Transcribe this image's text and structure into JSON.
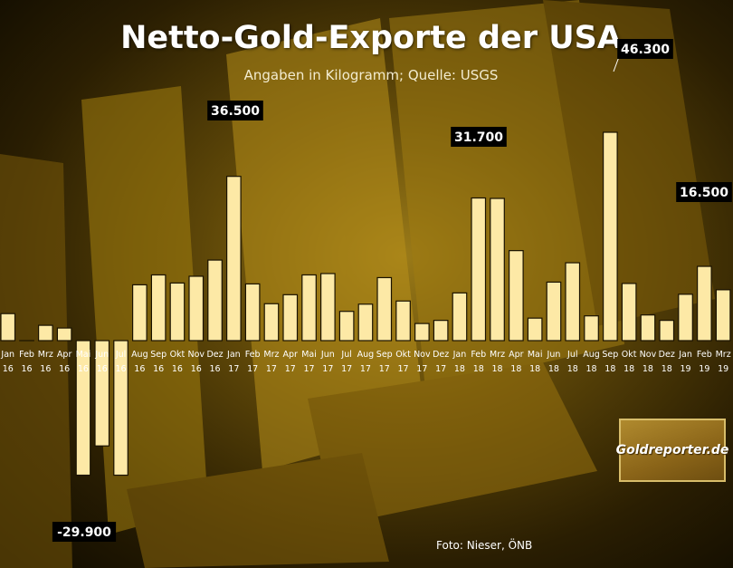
{
  "chart_data": {
    "type": "bar",
    "title": "Netto-Gold-Exporte der USA",
    "subtitle": "Angaben in Kilogramm; Quelle: USGS",
    "categories": [
      "Jan 16",
      "Feb 16",
      "Mrz 16",
      "Apr 16",
      "Mai 16",
      "Jun 16",
      "Jul 16",
      "Aug 16",
      "Sep 16",
      "Okt 16",
      "Nov 16",
      "Dez 16",
      "Jan 17",
      "Feb 17",
      "Mrz 17",
      "Apr 17",
      "Mai 17",
      "Jun 17",
      "Jul 17",
      "Aug 17",
      "Sep 17",
      "Okt 17",
      "Nov 17",
      "Dez 17",
      "Jan 18",
      "Feb 18",
      "Mrz 18",
      "Apr 18",
      "Mai 18",
      "Jun 18",
      "Jul 18",
      "Aug 18",
      "Sep 18",
      "Okt 18",
      "Nov 18",
      "Dez 18",
      "Jan 19",
      "Feb 19",
      "Mrz 19"
    ],
    "tick_months": [
      "Jan",
      "Feb",
      "Mrz",
      "Apr",
      "Mai",
      "Jun",
      "Jul",
      "Aug",
      "Sep",
      "Okt",
      "Nov",
      "Dez",
      "Jan",
      "Feb",
      "Mrz",
      "Apr",
      "Mai",
      "Jun",
      "Jul",
      "Aug",
      "Sep",
      "Okt",
      "Nov",
      "Dez",
      "Jan",
      "Feb",
      "Mrz",
      "Apr",
      "Mai",
      "Jun",
      "Jul",
      "Aug",
      "Sep",
      "Okt",
      "Nov",
      "Dez",
      "Jan",
      "Feb",
      "Mrz"
    ],
    "tick_years": [
      "16",
      "16",
      "16",
      "16",
      "16",
      "16",
      "16",
      "16",
      "16",
      "16",
      "16",
      "16",
      "17",
      "17",
      "17",
      "17",
      "17",
      "17",
      "17",
      "17",
      "17",
      "17",
      "17",
      "17",
      "18",
      "18",
      "18",
      "18",
      "18",
      "18",
      "18",
      "18",
      "18",
      "18",
      "18",
      "18",
      "19",
      "19",
      "19"
    ],
    "values": [
      6000,
      0,
      3400,
      2800,
      -29900,
      -23400,
      -29900,
      12400,
      14600,
      12800,
      14300,
      17900,
      36500,
      12600,
      8200,
      10200,
      14600,
      14900,
      6500,
      8100,
      14000,
      8800,
      3800,
      4500,
      10600,
      31700,
      31600,
      20000,
      5000,
      13000,
      17300,
      5500,
      46300,
      12700,
      5700,
      4500,
      10300,
      16500,
      11300
    ],
    "annotations": [
      {
        "index": 4,
        "text": "-29.900"
      },
      {
        "index": 12,
        "text": "36.500"
      },
      {
        "index": 25,
        "text": "31.700"
      },
      {
        "index": 32,
        "text": "46.300"
      },
      {
        "index": 37,
        "text": "16.500"
      }
    ],
    "ylim": [
      -31000,
      48000
    ],
    "grid": false,
    "legend": "none",
    "xlabel": "",
    "ylabel": "",
    "colors": {
      "bar": "#fde9a6",
      "bar_stroke": "#1a1200",
      "tick_text": "#ffffff",
      "annotation_bg": "#000000",
      "annotation_text": "#ffffff"
    }
  },
  "footer": {
    "credit": "Foto: Nieser, ÖNB"
  },
  "logo": {
    "text": "Goldreporter.de"
  }
}
